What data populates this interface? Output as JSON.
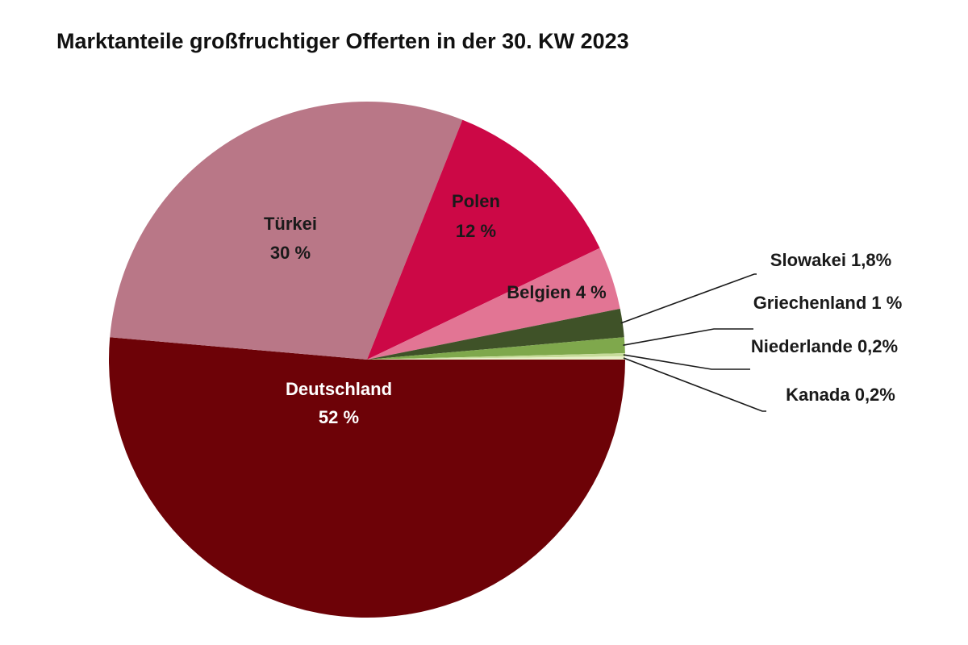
{
  "chart_data": {
    "type": "pie",
    "title": "Marktanteile großfruchtiger Offerten in der 30. KW 2023",
    "unit": "%",
    "slices": [
      {
        "name": "Deutschland",
        "value": 52,
        "label": "Deutschland",
        "value_label": "52 %",
        "color": "#6d0207",
        "text_color": "#ffffff"
      },
      {
        "name": "Türkei",
        "value": 30,
        "label": "Türkei",
        "value_label": "30 %",
        "color": "#b97787",
        "text_color": "#1a1a1a"
      },
      {
        "name": "Polen",
        "value": 12,
        "label": "Polen",
        "value_label": "12 %",
        "color": "#cc0846",
        "text_color": "#1a1a1a"
      },
      {
        "name": "Belgien",
        "value": 4,
        "label": "Belgien 4 %",
        "color": "#e27594",
        "text_color": "#1a1a1a"
      },
      {
        "name": "Slowakei",
        "value": 1.8,
        "label": "Slowakei 1,8%",
        "color": "#3f5228",
        "text_color": "#1a1a1a"
      },
      {
        "name": "Griechenland",
        "value": 1,
        "label": "Griechenland 1 %",
        "color": "#7fa84c",
        "text_color": "#1a1a1a"
      },
      {
        "name": "Niederlande",
        "value": 0.2,
        "label": "Niederlande 0,2%",
        "color": "#c7dc9a",
        "text_color": "#1a1a1a"
      },
      {
        "name": "Kanada",
        "value": 0.2,
        "label": "Kanada 0,2%",
        "color": "#e9f0c8",
        "text_color": "#1a1a1a"
      }
    ]
  }
}
